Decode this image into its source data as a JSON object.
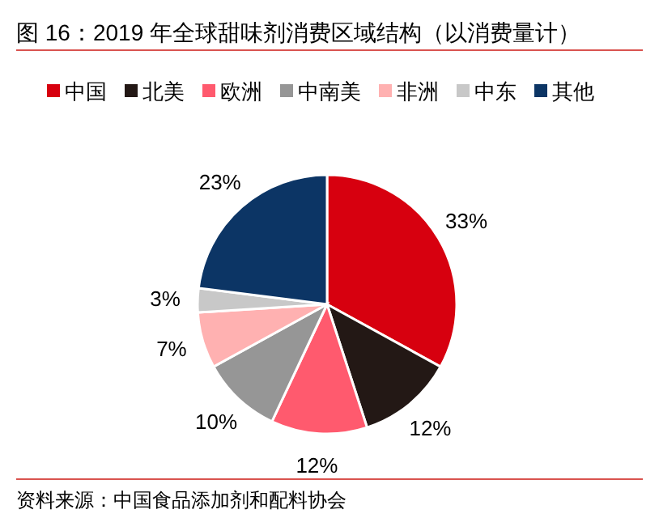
{
  "chart_data": {
    "type": "pie",
    "title": "图 16：2019 年全球甜味剂消费区域结构（以消费量计）",
    "categories": [
      "中国",
      "北美",
      "欧洲",
      "中南美",
      "非洲",
      "中东",
      "其他"
    ],
    "values": [
      33,
      12,
      12,
      10,
      7,
      3,
      23
    ],
    "colors": [
      "#d7000f",
      "#231815",
      "#ff5a6e",
      "#969696",
      "#ffb1b1",
      "#c8c8c8",
      "#0c3565"
    ],
    "value_labels": [
      "33%",
      "12%",
      "12%",
      "10%",
      "7%",
      "3%",
      "23%"
    ],
    "legend": "top",
    "annotations": [
      "资料来源：中国食品添加剂和配料协会"
    ]
  }
}
